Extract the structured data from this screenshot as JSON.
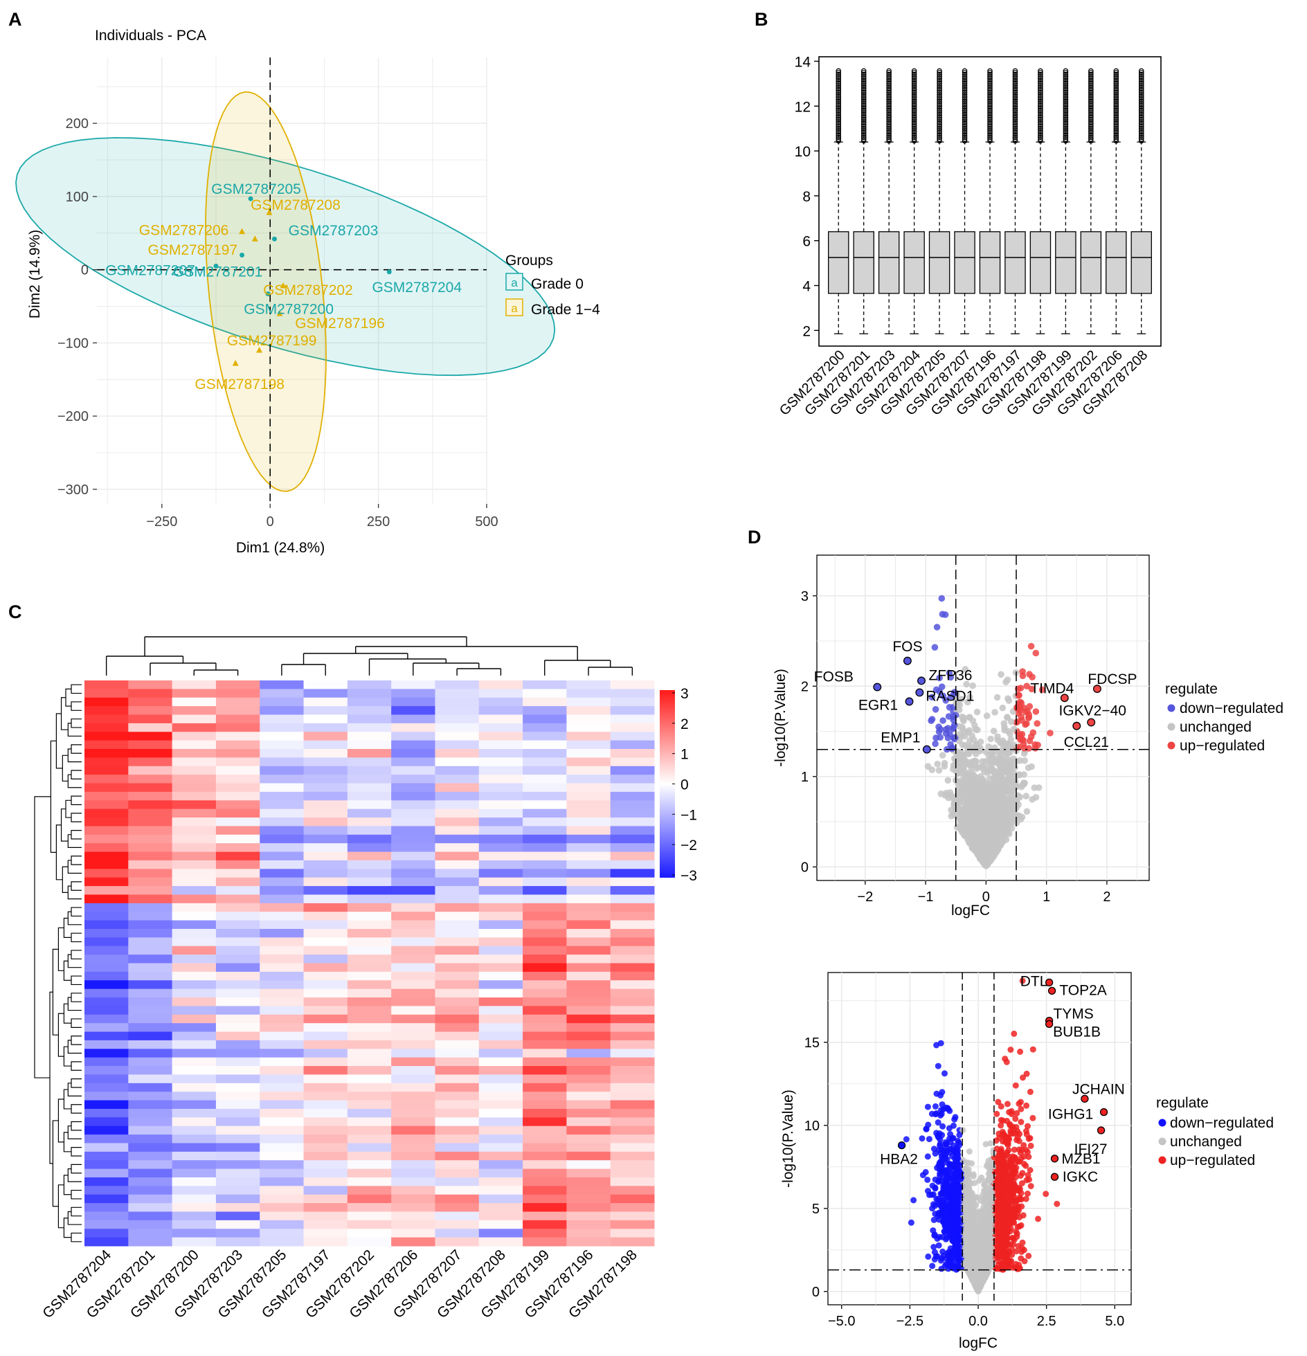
{
  "chart_data": [
    {
      "panel": "A",
      "type": "scatter",
      "title": "Individuals - PCA",
      "xlabel": "Dim1 (24.8%)",
      "ylabel": "Dim2 (14.9%)",
      "xlim": [
        -400,
        500
      ],
      "ylim": [
        -320,
        290
      ],
      "xticks": [
        -250,
        0,
        250,
        500
      ],
      "xtick_labels": [
        "−250",
        "0",
        "250",
        "500"
      ],
      "yticks": [
        200,
        100,
        0,
        -100,
        -200,
        -300
      ],
      "ytick_labels": [
        "200",
        "100",
        "0",
        "−100",
        "−200",
        "−300"
      ],
      "legend": {
        "title": "Groups",
        "position": "right",
        "entries": [
          "Grade 0",
          "Grade 1−4"
        ],
        "key_glyph": "a"
      },
      "colors": {
        "Grade 0": "#1ba8a8",
        "Grade 1−4": "#e0b000"
      },
      "series": [
        {
          "name": "Grade 0",
          "points": [
            {
              "label": "GSM2787205",
              "x": -45,
              "y": 97
            },
            {
              "label": "GSM2787203",
              "x": 10,
              "y": 42
            },
            {
              "label": "GSM2787207",
              "x": -125,
              "y": 5
            },
            {
              "label": "GSM2787201",
              "x": -65,
              "y": 20
            },
            {
              "label": "GSM2787204",
              "x": 275,
              "y": -3
            },
            {
              "label": "GSM2787200",
              "x": -5,
              "y": -33
            }
          ]
        },
        {
          "name": "Grade 1−4",
          "points": [
            {
              "label": "GSM2787208",
              "x": -2,
              "y": 78
            },
            {
              "label": "GSM2787206",
              "x": -65,
              "y": 52
            },
            {
              "label": "GSM2787197",
              "x": -35,
              "y": 42
            },
            {
              "label": "GSM2787202",
              "x": 30,
              "y": -22
            },
            {
              "label": "GSM2787196",
              "x": 22,
              "y": -60
            },
            {
              "label": "GSM2787199",
              "x": -25,
              "y": -110
            },
            {
              "label": "GSM2787198",
              "x": -80,
              "y": -128
            }
          ]
        }
      ]
    },
    {
      "panel": "B",
      "type": "box",
      "categories": [
        "GSM2787200",
        "GSM2787201",
        "GSM2787203",
        "GSM2787204",
        "GSM2787205",
        "GSM2787207",
        "GSM2787196",
        "GSM2787197",
        "GSM2787198",
        "GSM2787199",
        "GSM2787202",
        "GSM2787206",
        "GSM2787208"
      ],
      "box_stats": {
        "whisker_low": 1.85,
        "q1": 3.65,
        "median": 5.25,
        "q3": 6.4,
        "whisker_high": 10.4,
        "outlier_max": 13.6
      },
      "ylim": [
        1.3,
        14.2
      ],
      "yticks": [
        2,
        4,
        6,
        8,
        10,
        12,
        14
      ],
      "fill": "#d3d3d3"
    },
    {
      "panel": "C",
      "type": "heatmap",
      "columns": [
        "GSM2787204",
        "GSM2787201",
        "GSM2787200",
        "GSM2787203",
        "GSM2787205",
        "GSM2787197",
        "GSM2787202",
        "GSM2787206",
        "GSM2787207",
        "GSM2787208",
        "GSM2787199",
        "GSM2787196",
        "GSM2787198"
      ],
      "n_rows": 66,
      "n_rows_upper_cluster": 26,
      "scale_range": [
        -3,
        3
      ],
      "scale_ticks": [
        3,
        2,
        1,
        0,
        -1,
        -2,
        -3
      ],
      "scale_tick_labels": [
        "3",
        "2",
        "1",
        "0",
        "−1",
        "−2",
        "−3"
      ],
      "column_means_upper": [
        2.4,
        1.6,
        0.6,
        0.9,
        -0.9,
        -0.5,
        -0.7,
        -1.0,
        -0.2,
        -0.6,
        -0.7,
        -0.3,
        -0.6
      ],
      "column_means_lower": [
        -1.9,
        -1.1,
        -0.5,
        -0.5,
        -0.2,
        0.4,
        0.4,
        0.6,
        0.6,
        0.1,
        1.6,
        1.2,
        1.1
      ],
      "colors": {
        "low": "#1a1aff",
        "mid": "#ffffff",
        "high": "#ff1a1a"
      }
    },
    {
      "panel": "D-top",
      "type": "scatter",
      "subtype": "volcano",
      "xlabel": "logFC",
      "ylabel": "-log10(P.Value)",
      "xlim": [
        -2.8,
        2.7
      ],
      "ylim": [
        -0.15,
        3.45
      ],
      "xticks": [
        -2,
        -1,
        0,
        1,
        2
      ],
      "xtick_labels": [
        "−2",
        "−1",
        "0",
        "1",
        "2"
      ],
      "yticks": [
        0,
        1,
        2,
        3
      ],
      "vlines": [
        -0.5,
        0.5
      ],
      "hline": 1.3,
      "legend": {
        "title": "regulate",
        "entries": [
          "down−regulated",
          "unchanged",
          "up−regulated"
        ]
      },
      "colors": {
        "down": "#5555dd",
        "unchanged": "#c4c4c4",
        "up": "#ee4444"
      },
      "labeled_points": [
        {
          "label": "FOS",
          "x": -1.3,
          "y": 2.28
        },
        {
          "label": "FOSB",
          "x": -1.8,
          "y": 1.99
        },
        {
          "label": "ZFP36",
          "x": -1.07,
          "y": 2.06
        },
        {
          "label": "EGR1",
          "x": -1.27,
          "y": 1.83
        },
        {
          "label": "RASD1",
          "x": -1.1,
          "y": 1.93
        },
        {
          "label": "EMP1",
          "x": -0.98,
          "y": 1.3
        },
        {
          "label": "TIMD4",
          "x": 1.3,
          "y": 1.87
        },
        {
          "label": "FDCSP",
          "x": 1.84,
          "y": 1.97
        },
        {
          "label": "IGKV2−40",
          "x": 1.74,
          "y": 1.6
        },
        {
          "label": "CCL21",
          "x": 1.5,
          "y": 1.56
        }
      ]
    },
    {
      "panel": "D-bottom",
      "type": "scatter",
      "subtype": "volcano",
      "xlabel": "logFC",
      "ylabel": "-log10(P.Value)",
      "xlim": [
        -5.5,
        5.6
      ],
      "ylim": [
        -0.8,
        19.2
      ],
      "xticks": [
        -5,
        -2.5,
        0,
        2.5,
        5
      ],
      "xtick_labels": [
        "−5.0",
        "−2.5",
        "0.0",
        "2.5",
        "5.0"
      ],
      "yticks": [
        0,
        5,
        10,
        15
      ],
      "vlines": [
        -0.58,
        0.58
      ],
      "hline": 1.3,
      "legend": {
        "title": "regulate",
        "entries": [
          "down−regulated",
          "unchanged",
          "up−regulated"
        ]
      },
      "colors": {
        "down": "#1111ff",
        "unchanged": "#c4c4c4",
        "up": "#ee2222"
      },
      "labeled_points": [
        {
          "label": "DTL",
          "x": 2.6,
          "y": 18.6
        },
        {
          "label": "TOP2A",
          "x": 2.7,
          "y": 18.1
        },
        {
          "label": "TYMS",
          "x": 2.6,
          "y": 16.3
        },
        {
          "label": "BUB1B",
          "x": 2.6,
          "y": 16.1
        },
        {
          "label": "JCHAIN",
          "x": 3.9,
          "y": 11.6
        },
        {
          "label": "IGHG1",
          "x": 4.6,
          "y": 10.8
        },
        {
          "label": "IFI27",
          "x": 4.5,
          "y": 9.7
        },
        {
          "label": "MZB1",
          "x": 2.8,
          "y": 8.0
        },
        {
          "label": "IGKC",
          "x": 2.8,
          "y": 6.9
        },
        {
          "label": "HBA2",
          "x": -2.8,
          "y": 8.8
        }
      ]
    }
  ],
  "panel_letters": [
    "A",
    "B",
    "C",
    "D"
  ]
}
